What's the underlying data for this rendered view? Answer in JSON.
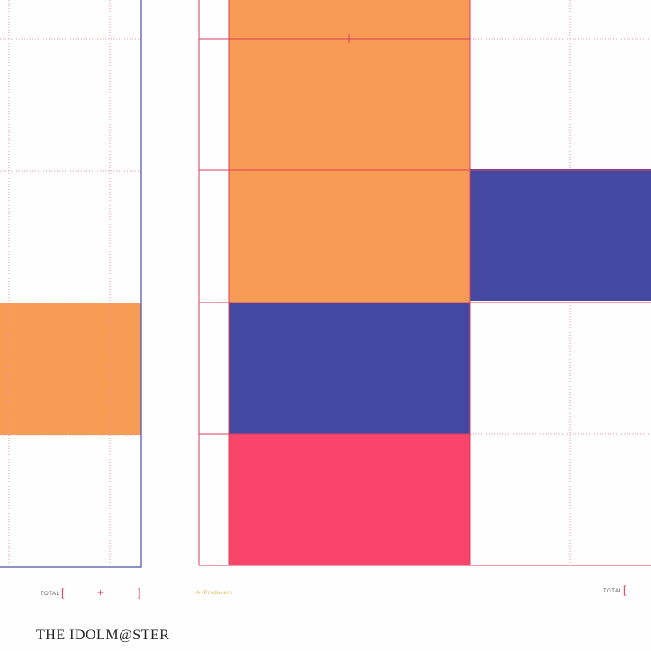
{
  "footer": {
    "left": {
      "label": "TOTAL",
      "open": "[",
      "plus": "+",
      "close": "]"
    },
    "credit": "A+Producers",
    "right": {
      "label": "TOTAL",
      "open": "["
    }
  },
  "title": "THE IDOLM@STER"
}
